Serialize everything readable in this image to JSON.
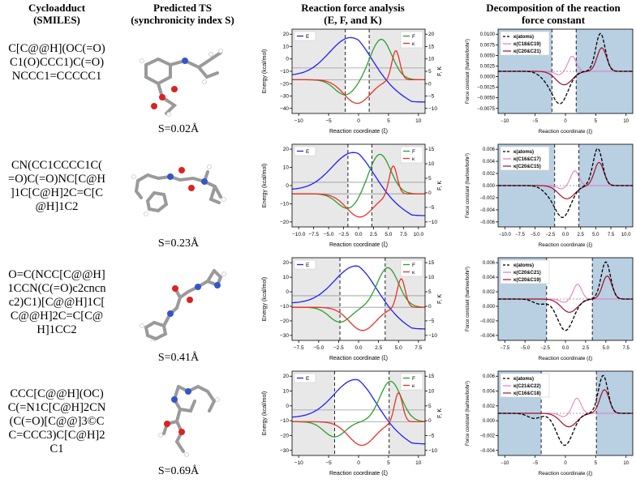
{
  "headers": {
    "col1": [
      "Cycloadduct",
      "(SMILES)"
    ],
    "col2": [
      "Predicted TS",
      "(synchronicity index S)"
    ],
    "col3": [
      "Reaction force analysis",
      "(E, F, and K)"
    ],
    "col4": [
      "Decomposition of the reaction",
      "force constant"
    ]
  },
  "rows": [
    {
      "smiles_lines": [
        "C[C@@H](OC(=O)",
        "C1(O)CCC1)C(=O)",
        "NCCC1=CCCCC1"
      ],
      "s_label": "S=0.02Å",
      "rf": {
        "xticks": [
          "−10",
          "−5",
          "0",
          "5",
          "10"
        ],
        "yticks_left": [
          "20",
          "10",
          "0",
          "−10",
          "−20",
          "−30",
          "−40"
        ],
        "yticks_right": [
          "20",
          "15",
          "10",
          "5",
          "0",
          "−5",
          "−10"
        ],
        "legend_left": "E",
        "legend_right": [
          "F",
          "κ"
        ]
      },
      "fc": {
        "yticks": [
          "0.0100",
          "0.0075",
          "0.0050",
          "0.0025",
          "0.0000",
          "−0.0025",
          "−0.0050",
          "−0.0075"
        ],
        "xticks": [
          "−10",
          "−5",
          "0",
          "5",
          "10"
        ],
        "legend": [
          "κ(atoms)",
          "κ(C18&C19)",
          "κ(C20&C21)"
        ]
      }
    },
    {
      "smiles_lines": [
        "CN(CC1CCCC1C(",
        "=O)C(=O)NC[C@H",
        "]1C[C@H]2C=C[C",
        "@H]1C2"
      ],
      "s_label": "S=0.23Å",
      "rf": {
        "xticks": [
          "−10.0",
          "−7.5",
          "−5.0",
          "−2.5",
          "0.0",
          "2.5",
          "5.0",
          "7.5",
          "10.0"
        ],
        "yticks_left": [
          "20",
          "10",
          "0",
          "−10",
          "−20"
        ],
        "yticks_right": [
          "15",
          "10",
          "5",
          "0",
          "−5",
          "−10"
        ],
        "legend_left": "E",
        "legend_right": [
          "F",
          "κ"
        ]
      },
      "fc": {
        "yticks": [
          "0.006",
          "0.004",
          "0.002",
          "0.000",
          "−0.002",
          "−0.004",
          "−0.006"
        ],
        "xticks": [
          "−10.0",
          "−7.5",
          "−5.0",
          "−2.5",
          "0.0",
          "2.5",
          "5.0",
          "7.5",
          "10.0"
        ],
        "legend": [
          "κ(atoms)",
          "κ(C16&C17)",
          "κ(C20&C15)"
        ]
      }
    },
    {
      "smiles_lines": [
        "O=C(NCC[C@@H]",
        "1CCN(C(=O)c2cncn",
        "c2)C1)[C@@H]1C[",
        "C@@H]2C=C[C@",
        "H]1CC2"
      ],
      "s_label": "S=0.41Å",
      "rf": {
        "xticks": [
          "−7.5",
          "−5.0",
          "−2.5",
          "0.0",
          "2.5",
          "5.0",
          "7.5"
        ],
        "yticks_left": [
          "20",
          "10",
          "0",
          "−10",
          "−20",
          "−30"
        ],
        "yticks_right": [
          "15",
          "10",
          "5",
          "0",
          "−5",
          "−10"
        ],
        "legend_left": "E",
        "legend_right": [
          "F",
          "κ"
        ]
      },
      "fc": {
        "yticks": [
          "0.006",
          "0.004",
          "0.002",
          "0.000",
          "−0.002",
          "−0.004"
        ],
        "xticks": [
          "−7.5",
          "−5.0",
          "−2.5",
          "0.0",
          "2.5",
          "5.0",
          "7.5"
        ],
        "legend": [
          "κ(atoms)",
          "κ(C20&C21)",
          "κ(C20&C19)"
        ]
      }
    },
    {
      "smiles_lines": [
        "CCC[C@@H](OC)",
        "C(=N1C[C@H]2CN",
        "(C(=O)[C@@]3©C",
        "C=CCC3)C[C@H]2",
        "C1"
      ],
      "s_label": "S=0.69Å",
      "rf": {
        "xticks": [
          "−10",
          "−5",
          "0",
          "5",
          "10"
        ],
        "yticks_left": [
          "20",
          "10",
          "0",
          "−10",
          "−20",
          "−30"
        ],
        "yticks_right": [
          "15",
          "10",
          "5",
          "0",
          "−5",
          "−10"
        ],
        "legend_left": "E",
        "legend_right": [
          "F",
          "κ"
        ]
      },
      "fc": {
        "yticks": [
          "0.006",
          "0.004",
          "0.002",
          "0.000",
          "−0.002",
          "−0.004"
        ],
        "xticks": [
          "−10",
          "−5",
          "0",
          "5",
          "10"
        ],
        "legend": [
          "κ(atoms)",
          "κ(C21&C22)",
          "κ(C16&C18)"
        ]
      }
    }
  ],
  "axis_labels": {
    "rf_ylabel": "Energy (kcal/mol)",
    "rf_xlabel": "Reaction coordinate (ξ)",
    "rf_y2label": "F, K",
    "fc_ylabel": "Force constant (hartree/bohr²)",
    "fc_xlabel": "Reaction coordinate (ξ)"
  },
  "colors": {
    "energy": "#1f1fff",
    "force": "#2ca02c",
    "kappa": "#e8312a",
    "kappa_atoms": "#000000",
    "kappa_pair1": "#e377c2",
    "kappa_pair2": "#a50f2a",
    "shade_rf": "#e8e8e8",
    "shade_fc": "#b9cfe2"
  }
}
